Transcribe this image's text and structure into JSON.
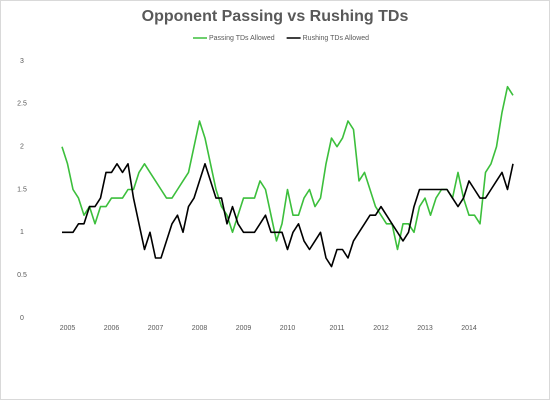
{
  "chart_data": {
    "type": "line",
    "title": "Opponent Passing vs Rushing TDs",
    "categories": [
      null,
      "2005",
      null,
      null,
      null,
      null,
      null,
      null,
      null,
      "2006",
      null,
      null,
      null,
      null,
      null,
      null,
      null,
      "2007",
      null,
      null,
      null,
      null,
      null,
      null,
      null,
      "2008",
      null,
      null,
      null,
      null,
      null,
      null,
      null,
      "2009",
      null,
      null,
      null,
      null,
      null,
      null,
      null,
      "2010",
      null,
      null,
      null,
      null,
      null,
      null,
      null,
      null,
      "2011",
      null,
      null,
      null,
      null,
      null,
      null,
      null,
      "2012",
      null,
      null,
      null,
      null,
      null,
      null,
      null,
      "2013",
      null,
      null,
      null,
      null,
      null,
      null,
      null,
      "2014",
      null,
      null,
      null,
      null,
      null,
      null,
      null,
      null
    ],
    "series": [
      {
        "name": "Passing TDs Allowed",
        "color": "#3cbf3c",
        "values": [
          2.0,
          1.8,
          1.5,
          1.4,
          1.2,
          1.3,
          1.1,
          1.3,
          1.3,
          1.4,
          1.4,
          1.4,
          1.5,
          1.5,
          1.7,
          1.8,
          1.7,
          1.6,
          1.5,
          1.4,
          1.4,
          1.5,
          1.6,
          1.7,
          2.0,
          2.3,
          2.1,
          1.8,
          1.5,
          1.3,
          1.2,
          1.0,
          1.2,
          1.4,
          1.4,
          1.4,
          1.6,
          1.5,
          1.2,
          0.9,
          1.1,
          1.5,
          1.2,
          1.2,
          1.4,
          1.5,
          1.3,
          1.4,
          1.8,
          2.1,
          2.0,
          2.1,
          2.3,
          2.2,
          1.6,
          1.7,
          1.5,
          1.3,
          1.2,
          1.1,
          1.1,
          0.8,
          1.1,
          1.1,
          1.0,
          1.3,
          1.4,
          1.2,
          1.4,
          1.5,
          1.5,
          1.4,
          1.7,
          1.4,
          1.2,
          1.2,
          1.1,
          1.7,
          1.8,
          2.0,
          2.4,
          2.7,
          2.6
        ]
      },
      {
        "name": "Rushing TDs Allowed",
        "color": "#000000",
        "values": [
          1.0,
          1.0,
          1.0,
          1.1,
          1.1,
          1.3,
          1.3,
          1.4,
          1.7,
          1.7,
          1.8,
          1.7,
          1.8,
          1.4,
          1.1,
          0.8,
          1.0,
          0.7,
          0.7,
          0.9,
          1.1,
          1.2,
          1.0,
          1.3,
          1.4,
          1.6,
          1.8,
          1.6,
          1.4,
          1.4,
          1.1,
          1.3,
          1.1,
          1.0,
          1.0,
          1.0,
          1.1,
          1.2,
          1.0,
          1.0,
          1.0,
          0.8,
          1.0,
          1.1,
          0.9,
          0.8,
          0.9,
          1.0,
          0.7,
          0.6,
          0.8,
          0.8,
          0.7,
          0.9,
          1.0,
          1.1,
          1.2,
          1.2,
          1.3,
          1.2,
          1.1,
          1.0,
          0.9,
          1.0,
          1.3,
          1.5,
          1.5,
          1.5,
          1.5,
          1.5,
          1.5,
          1.4,
          1.3,
          1.4,
          1.6,
          1.5,
          1.4,
          1.4,
          1.5,
          1.6,
          1.7,
          1.5,
          1.8
        ]
      }
    ],
    "ylim": [
      0,
      3
    ],
    "yticks": [
      0,
      0.5,
      1,
      1.5,
      2,
      2.5,
      3
    ],
    "grid": false,
    "legend": "top"
  }
}
